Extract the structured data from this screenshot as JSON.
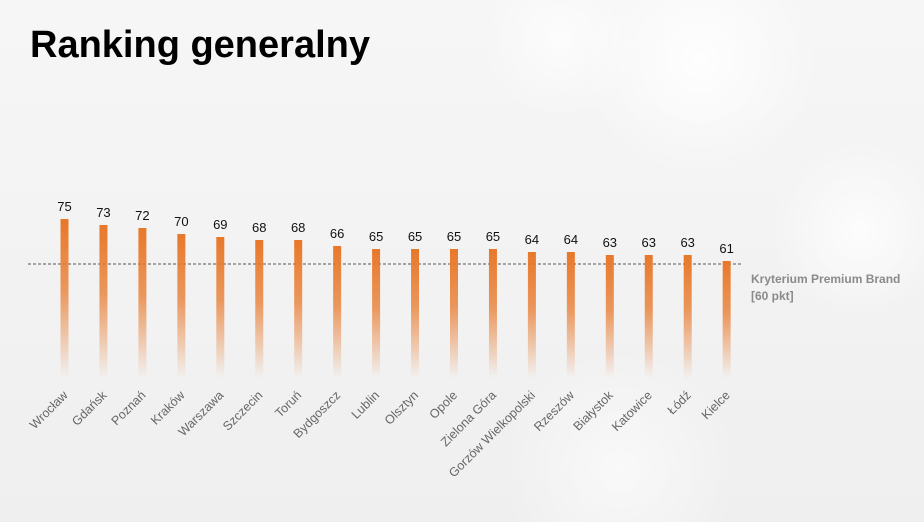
{
  "title": "Ranking generalny",
  "threshold": {
    "value": 60,
    "label_line1": "Kryterium Premium Brand",
    "label_line2": "[60 pkt]"
  },
  "chart_data": {
    "type": "bar",
    "title": "Ranking generalny",
    "categories": [
      "Wrocław",
      "Gdańsk",
      "Poznań",
      "Kraków",
      "Warszawa",
      "Szczecin",
      "Toruń",
      "Bydgoszcz",
      "Lublin",
      "Olsztyn",
      "Opole",
      "Zielona Góra",
      "Gorzów Wielkopolski",
      "Rzeszów",
      "Białystok",
      "Katowice",
      "Łódź",
      "Kielce"
    ],
    "values": [
      75,
      73,
      72,
      70,
      69,
      68,
      68,
      66,
      65,
      65,
      65,
      65,
      64,
      64,
      63,
      63,
      63,
      61
    ],
    "reference_line": 60,
    "bar_color": "#e8782a",
    "grid": false,
    "legend": "none"
  }
}
